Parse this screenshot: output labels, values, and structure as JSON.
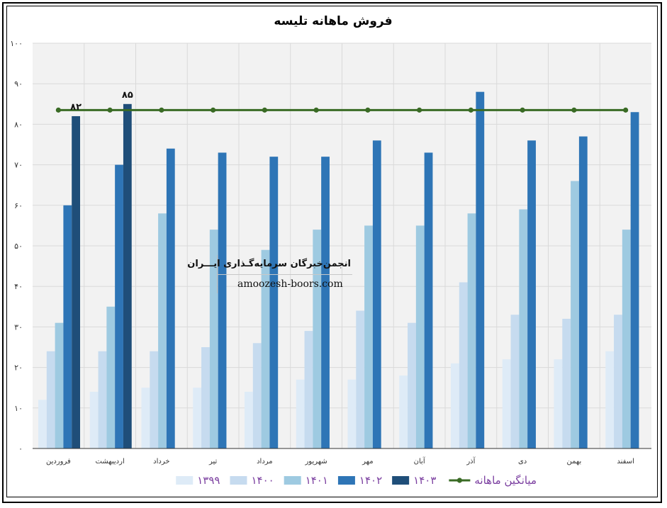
{
  "chart_data": {
    "type": "bar",
    "title": "فروش ماهانه تلیسه",
    "categories": [
      "فروردین",
      "اردیبهشت",
      "خرداد",
      "تیر",
      "مرداد",
      "شهریور",
      "مهر",
      "آبان",
      "آذر",
      "دی",
      "بهمن",
      "اسفند"
    ],
    "ylim": [
      0,
      100
    ],
    "y_ticks": [
      "0",
      "10",
      "20",
      "30",
      "40",
      "50",
      "60",
      "70",
      "80",
      "90",
      "100"
    ],
    "grid": true,
    "legend_position": "bottom",
    "series": [
      {
        "name": "1399",
        "color": "#deebf7",
        "values": [
          12,
          14,
          15,
          15,
          14,
          17,
          17,
          18,
          21,
          22,
          22,
          24
        ]
      },
      {
        "name": "1400",
        "color": "#c6dbef",
        "values": [
          24,
          24,
          24,
          25,
          26,
          29,
          34,
          31,
          41,
          33,
          32,
          33
        ]
      },
      {
        "name": "1401",
        "color": "#9ecae1",
        "values": [
          31,
          35,
          58,
          54,
          49,
          54,
          55,
          55,
          58,
          59,
          66,
          54
        ]
      },
      {
        "name": "1402",
        "color": "#2e75b6",
        "values": [
          60,
          70,
          74,
          73,
          72,
          72,
          76,
          73,
          88,
          76,
          77,
          83
        ]
      },
      {
        "name": "1403",
        "color": "#1f4e79",
        "values": [
          82,
          85,
          null,
          null,
          null,
          null,
          null,
          null,
          null,
          null,
          null,
          null
        ]
      }
    ],
    "line_series": {
      "name": "میانگین ماهانه",
      "color": "#3a6b25",
      "values": [
        83.5,
        83.5,
        83.5,
        83.5,
        83.5,
        83.5,
        83.5,
        83.5,
        83.5,
        83.5,
        83.5,
        83.5
      ]
    },
    "data_labels": [
      {
        "category_index": 0,
        "series": "1403",
        "text": "۸۲"
      },
      {
        "category_index": 1,
        "series": "1403",
        "text": "۸۵"
      }
    ]
  },
  "watermark": {
    "line1": "انجمن‌خبرگان سرمایه‌گـذاری ایـــران",
    "line2": "amoozesh-boors.com"
  }
}
